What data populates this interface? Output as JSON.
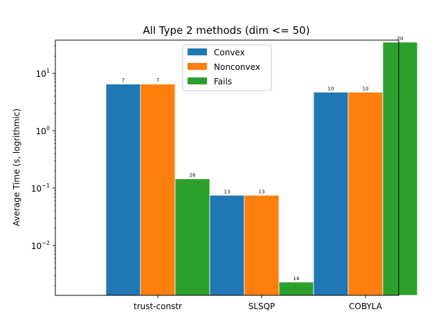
{
  "chart_data": {
    "type": "bar",
    "title": "All Type 2 methods (dim <= 50)",
    "xlabel": "",
    "ylabel": "Average Time (s, logrithmic)",
    "yscale": "log",
    "ylim": [
      0.00135,
      38
    ],
    "yticks": [
      {
        "value": 0.01,
        "base": "10",
        "exp": "−2"
      },
      {
        "value": 0.1,
        "base": "10",
        "exp": "−1"
      },
      {
        "value": 1,
        "base": "10",
        "exp": "0"
      },
      {
        "value": 10,
        "base": "10",
        "exp": "1"
      }
    ],
    "categories": [
      "trust-constr",
      "SLSQP",
      "COBYLA"
    ],
    "series": [
      {
        "name": "Convex",
        "color": "#1f77b4",
        "values": [
          6.5,
          0.075,
          4.7
        ],
        "labels": [
          "7",
          "13",
          "10"
        ]
      },
      {
        "name": "Nonconvex",
        "color": "#ff7f0e",
        "values": [
          6.5,
          0.075,
          4.7
        ],
        "labels": [
          "7",
          "13",
          "10"
        ]
      },
      {
        "name": "Fails",
        "color": "#2ca02c",
        "values": [
          0.145,
          0.0023,
          35
        ],
        "labels": [
          "26",
          "14",
          "20"
        ]
      }
    ],
    "grid": false,
    "legend_position": "top-center"
  }
}
